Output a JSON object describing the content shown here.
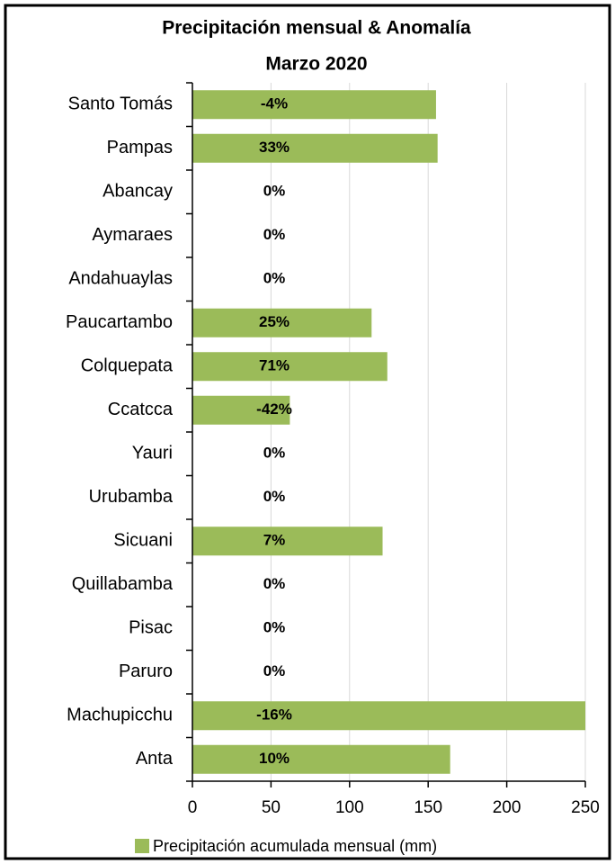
{
  "chart_data": {
    "type": "bar",
    "orientation": "horizontal",
    "title": "Precipitación mensual & Anomalía",
    "subtitle": "Marzo 2020",
    "categories": [
      "Santo Tomás",
      "Pampas",
      "Abancay",
      "Aymaraes",
      "Andahuaylas",
      "Paucartambo",
      "Colquepata",
      "Ccatcca",
      "Yauri",
      "Urubamba",
      "Sicuani",
      "Quillabamba",
      "Pisac",
      "Paruro",
      "Machupicchu",
      "Anta"
    ],
    "series": [
      {
        "name": "Precipitación acumulada mensual (mm)",
        "color": "#9bbb59",
        "values": [
          155,
          156,
          0,
          0,
          0,
          114,
          124,
          62,
          0,
          0,
          121,
          0,
          0,
          0,
          250,
          164
        ]
      }
    ],
    "annotations": [
      "-4%",
      "33%",
      "0%",
      "0%",
      "0%",
      "25%",
      "71%",
      "-42%",
      "0%",
      "0%",
      "7%",
      "0%",
      "0%",
      "0%",
      "-16%",
      "10%"
    ],
    "xlim": [
      0,
      250
    ],
    "xticks": [
      0,
      50,
      100,
      150,
      200,
      250
    ],
    "grid": true,
    "legend": "bottom"
  }
}
